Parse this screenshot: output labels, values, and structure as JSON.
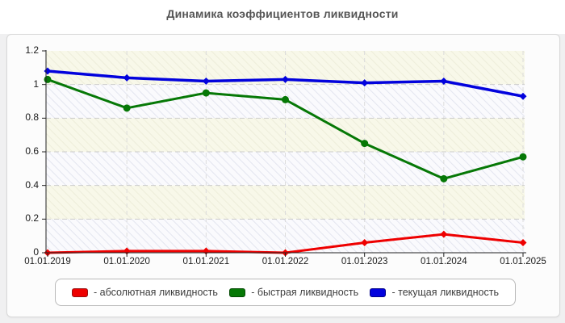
{
  "title": "Динамика коэффициентов ликвидности",
  "chart_data": {
    "type": "line",
    "title": "Динамика коэффициентов ликвидности",
    "categories": [
      "01.01.2019",
      "01.01.2020",
      "01.01.2021",
      "01.01.2022",
      "01.01.2023",
      "01.01.2024",
      "01.01.2025"
    ],
    "series": [
      {
        "name": "абсолютная ликвидность",
        "legend_label": "- абсолютная ликвидность",
        "color": "#ee0000",
        "swatch_border": "#991111",
        "marker": "diamond",
        "values": [
          0.0,
          0.01,
          0.01,
          0.0,
          0.06,
          0.11,
          0.06
        ]
      },
      {
        "name": "быстрая ликвидность",
        "legend_label": "- быстрая ликвидность",
        "color": "#067806",
        "swatch_border": "#044a04",
        "marker": "circle",
        "values": [
          1.03,
          0.86,
          0.95,
          0.91,
          0.65,
          0.44,
          0.57
        ]
      },
      {
        "name": "текущая ликвидность",
        "legend_label": "- текущая ликвидность",
        "color": "#0202dd",
        "swatch_border": "#020288",
        "marker": "diamond",
        "values": [
          1.08,
          1.04,
          1.02,
          1.03,
          1.01,
          1.02,
          0.93
        ]
      }
    ],
    "ylim": [
      0,
      1.2
    ],
    "y_tick_values": [
      0,
      0.2,
      0.4,
      0.6,
      0.8,
      1.0,
      1.2
    ],
    "y_tick_labels": [
      "0",
      "0.2",
      "0.4",
      "0.6",
      "0.8",
      "1",
      "1.2"
    ],
    "xlabel": "",
    "ylabel": "",
    "grid": true,
    "legend_position": "bottom"
  }
}
